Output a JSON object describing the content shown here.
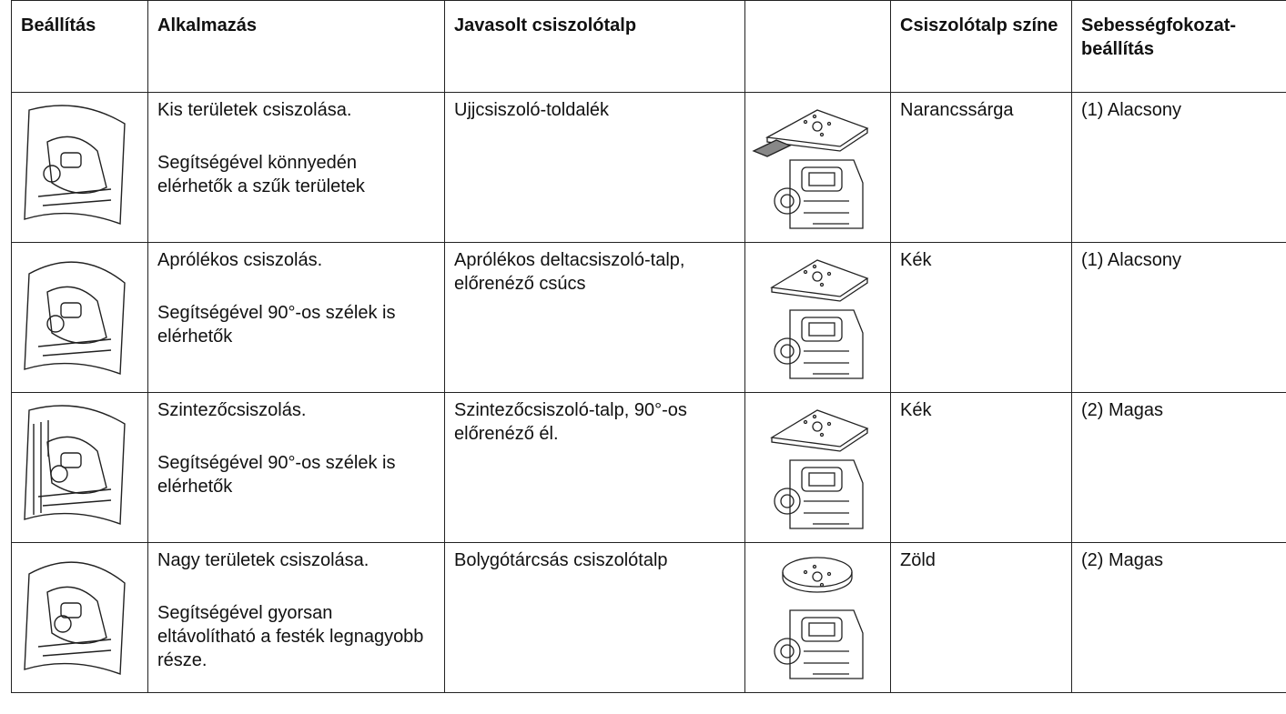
{
  "table": {
    "header": [
      "Beállítás",
      "Alkalmazás",
      "Javasolt csiszolótalp",
      "Csiszolótalp színe",
      "Sebességfokozat-beállítás"
    ],
    "rows": [
      {
        "application": "Kis területek csiszolása.",
        "detail": "Segítségével könnyedén elérhetők a szűk területek",
        "pad": "Ujjcsiszoló-toldalék",
        "color": "Narancssárga",
        "speed": "(1) Alacsony"
      },
      {
        "application": "Aprólékos csiszolás.",
        "detail": "Segítségével 90°-os szélek is elérhetők",
        "pad": "Aprólékos deltacsiszoló-talp, előrenéző csúcs",
        "color": "Kék",
        "speed": "(1) Alacsony"
      },
      {
        "application": "Szintezőcsiszolás.",
        "detail": "Segítségével 90°-os szélek is elérhetők",
        "pad": "Szintezőcsiszoló-talp, 90°-os előrenéző él.",
        "color": "Kék",
        "speed": "(2) Magas"
      },
      {
        "application": "Nagy területek csiszolása.",
        "detail": "Segítségével gyorsan eltávolítható a festék legnagyobb része.",
        "pad": "Bolygótárcsás csiszolótalp",
        "color": "Zöld",
        "speed": "(2) Magas"
      }
    ]
  }
}
